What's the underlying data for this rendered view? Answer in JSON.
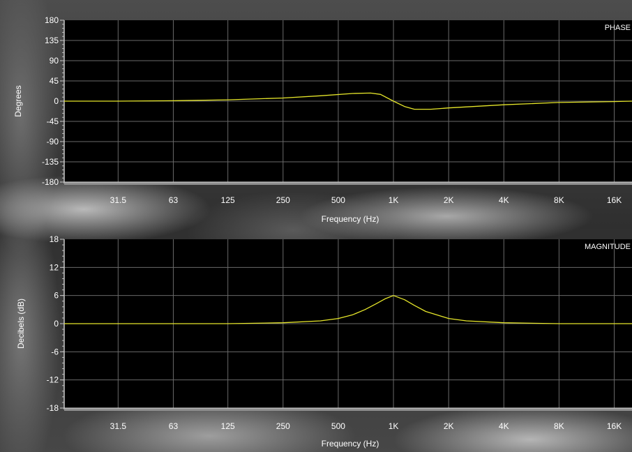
{
  "chart_data": [
    {
      "type": "line",
      "corner_label": "PHASE",
      "xlabel": "Frequency (Hz)",
      "ylabel": "Degrees",
      "xscale": "log",
      "xlim": [
        16,
        20000
      ],
      "ylim": [
        -180,
        180
      ],
      "x_ticks": [
        "31.5",
        "63",
        "125",
        "250",
        "500",
        "1K",
        "2K",
        "4K",
        "8K",
        "16K"
      ],
      "y_ticks": [
        "180",
        "135",
        "90",
        "45",
        "0",
        "-45",
        "-90",
        "-135",
        "-180"
      ],
      "grid": true,
      "line_color": "#e6e62a",
      "series": [
        {
          "x": [
            16,
            31.5,
            63,
            125,
            250,
            400,
            600,
            750,
            850,
            1000,
            1150,
            1300,
            1600,
            2000,
            4000,
            8000,
            16000,
            20000
          ],
          "y": [
            0,
            0,
            1,
            3,
            7,
            12,
            17,
            18,
            15,
            0,
            -12,
            -18,
            -18,
            -15,
            -8,
            -3,
            -1,
            0
          ]
        }
      ]
    },
    {
      "type": "line",
      "corner_label": "MAGNITUDE",
      "xlabel": "Frequency (Hz)",
      "ylabel": "Decibels (dB)",
      "xscale": "log",
      "xlim": [
        16,
        20000
      ],
      "ylim": [
        -18,
        18
      ],
      "x_ticks": [
        "31.5",
        "63",
        "125",
        "250",
        "500",
        "1K",
        "2K",
        "4K",
        "8K",
        "16K"
      ],
      "y_ticks": [
        "18",
        "12",
        "6",
        "0",
        "-6",
        "-12",
        "-18"
      ],
      "grid": true,
      "line_color": "#e6e62a",
      "series": [
        {
          "x": [
            16,
            125,
            250,
            400,
            500,
            600,
            700,
            800,
            900,
            1000,
            1150,
            1300,
            1500,
            2000,
            2500,
            4000,
            8000,
            20000
          ],
          "y": [
            0,
            0,
            0.2,
            0.6,
            1.1,
            1.9,
            3.0,
            4.2,
            5.3,
            6.0,
            5.1,
            3.9,
            2.6,
            1.1,
            0.6,
            0.2,
            0,
            0
          ]
        }
      ]
    }
  ]
}
